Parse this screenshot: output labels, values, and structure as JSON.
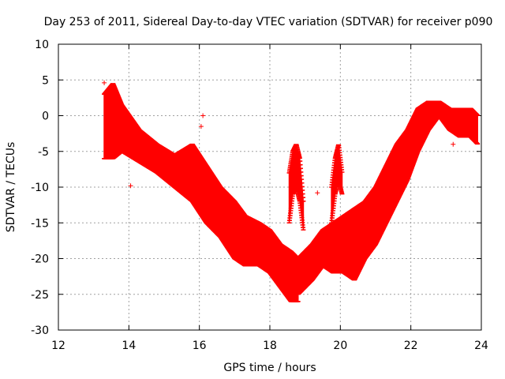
{
  "chart_data": {
    "type": "scatter",
    "title": "Day 253 of 2011, Sidereal Day-to-day VTEC variation (SDTVAR) for receiver p090",
    "xlabel": "GPS time / hours",
    "ylabel": "SDTVAR / TECUs",
    "xlim": [
      12,
      24
    ],
    "ylim": [
      -30,
      10
    ],
    "xticks": [
      "12",
      "14",
      "16",
      "18",
      "20",
      "22",
      "24"
    ],
    "yticks": [
      "10",
      "5",
      "0",
      "-5",
      "-10",
      "-15",
      "-20",
      "-25",
      "-30"
    ],
    "grid": true,
    "marker": "+",
    "series": [
      {
        "color": "#ff0000",
        "bands": [
          {
            "x": [
              13.3,
              13.55,
              13.8,
              14.3,
              14.8,
              15.3,
              15.8,
              16.2,
              16.6,
              17.0,
              17.3,
              17.7,
              18.0,
              18.3,
              18.6,
              18.8
            ],
            "ylow": [
              -6,
              -6,
              -5,
              -6.5,
              -8,
              -10,
              -12,
              -15,
              -17,
              -20,
              -21,
              -21,
              -22,
              -24,
              -26,
              -26
            ],
            "yhigh": [
              3,
              4.5,
              1.5,
              -2,
              -4,
              -5.5,
              -4,
              -7,
              -10,
              -12,
              -14,
              -15,
              -16,
              -18,
              -19,
              -20
            ]
          },
          {
            "x": [
              18.8,
              19.0,
              19.2,
              19.5,
              19.8,
              20.1,
              20.4,
              20.7,
              21.0,
              21.3,
              21.6,
              21.9,
              22.2,
              22.5,
              22.8,
              23.1,
              23.4,
              23.7,
              23.9
            ],
            "ylow": [
              -25,
              -24,
              -23,
              -21,
              -22,
              -22,
              -23,
              -20,
              -18,
              -15,
              -12,
              -9,
              -5,
              -2,
              0,
              -2,
              -3,
              -3,
              -4
            ],
            "yhigh": [
              -20,
              -19,
              -18,
              -16,
              -15,
              -14,
              -13,
              -12,
              -10,
              -7,
              -4,
              -2,
              1,
              2,
              2,
              1,
              1,
              1,
              0
            ]
          },
          {
            "x": [
              18.55,
              18.65,
              18.75,
              18.85,
              18.95
            ],
            "ylow": [
              -15,
              -11,
              -10,
              -12,
              -16
            ],
            "yhigh": [
              -8,
              -5,
              -4,
              -6,
              -12
            ]
          },
          {
            "x": [
              19.75,
              19.85,
              19.95,
              20.05
            ],
            "ylow": [
              -15,
              -11,
              -9,
              -11
            ],
            "yhigh": [
              -10,
              -6,
              -4,
              -8
            ]
          }
        ],
        "outliers": [
          {
            "x": 16.1,
            "y": 0
          },
          {
            "x": 16.05,
            "y": -1.5
          },
          {
            "x": 19.35,
            "y": -10.8
          },
          {
            "x": 13.3,
            "y": 4.6
          },
          {
            "x": 14.05,
            "y": -9.8
          },
          {
            "x": 23.2,
            "y": -4
          }
        ]
      }
    ]
  }
}
